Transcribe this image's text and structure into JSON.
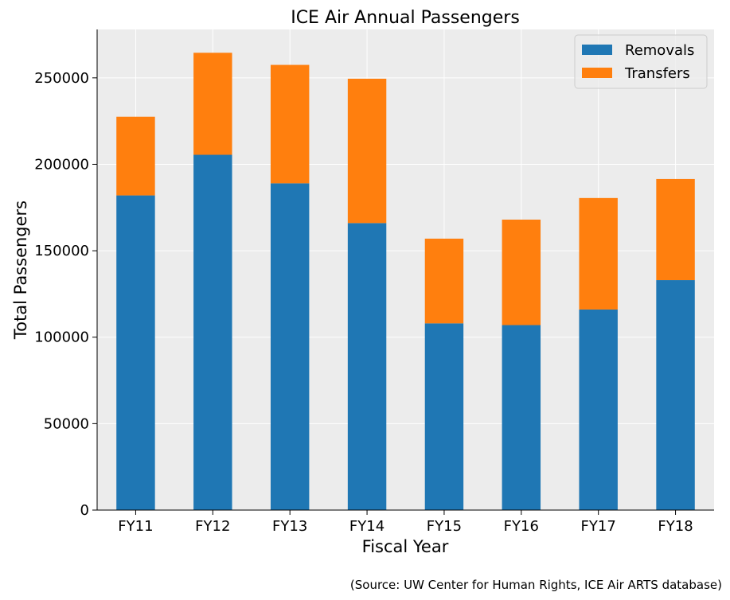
{
  "chart_data": {
    "type": "bar",
    "stacked": true,
    "title": "ICE Air Annual Passengers",
    "xlabel": "Fiscal Year",
    "ylabel": "Total Passengers",
    "categories": [
      "FY11",
      "FY12",
      "FY13",
      "FY14",
      "FY15",
      "FY16",
      "FY17",
      "FY18"
    ],
    "series": [
      {
        "name": "Removals",
        "color": "#1f77b4",
        "values": [
          182000,
          205500,
          189000,
          166000,
          108000,
          107000,
          116000,
          133000
        ]
      },
      {
        "name": "Transfers",
        "color": "#ff7f0e",
        "values": [
          45500,
          59000,
          68500,
          83500,
          49000,
          61000,
          64500,
          58500
        ]
      }
    ],
    "ylim": [
      0,
      278000
    ],
    "yticks": [
      0,
      50000,
      100000,
      150000,
      200000,
      250000
    ],
    "grid": true,
    "legend_position": "top-right",
    "background": "#ececec"
  },
  "source_note": "(Source: UW Center for Human Rights, ICE Air ARTS database)"
}
